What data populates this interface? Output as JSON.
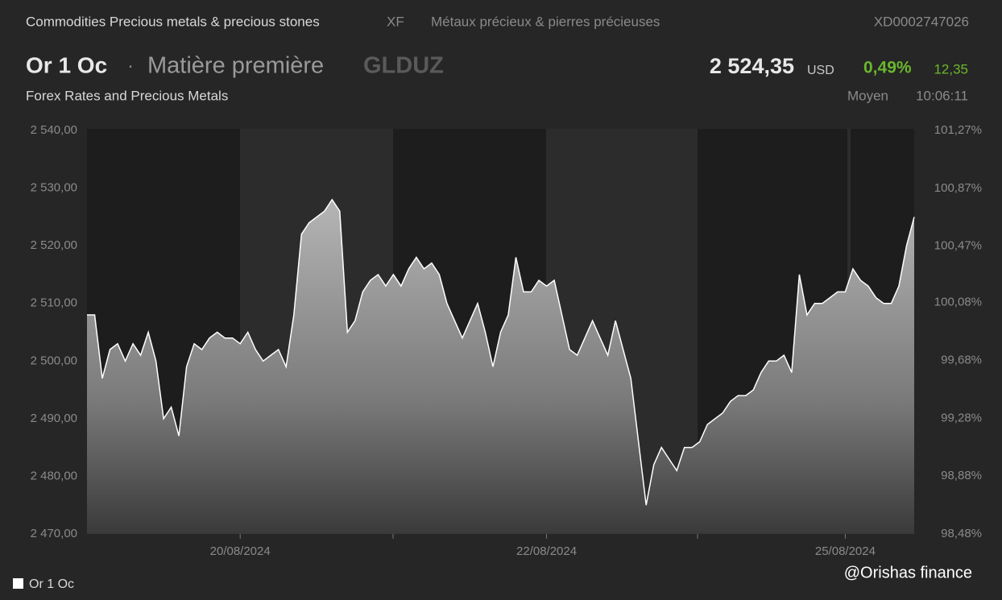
{
  "header": {
    "category": "Commodities Precious metals & precious stones",
    "exchange": "XF",
    "category_fr": "Métaux précieux & pierres précieuses",
    "isin": "XD0002747026",
    "name": "Or 1 Oc",
    "separator": "·",
    "asset_type": "Matière première",
    "ticker": "GLDUZ",
    "price": "2 524,35",
    "currency": "USD",
    "change_pct": "0,49%",
    "change": "12,35",
    "subtitle": "Forex Rates and Precious Metals",
    "quote_type": "Moyen",
    "time": "10:06:11"
  },
  "chart_data": {
    "type": "area",
    "categories": [
      null,
      null,
      null,
      null,
      null,
      null,
      null,
      null,
      null,
      null,
      null,
      null,
      null,
      null,
      null,
      null,
      null,
      null,
      null,
      null,
      "20/08/2024",
      null,
      null,
      null,
      null,
      null,
      null,
      null,
      null,
      null,
      null,
      null,
      null,
      null,
      null,
      null,
      null,
      null,
      null,
      null,
      null,
      null,
      null,
      null,
      null,
      null,
      null,
      null,
      null,
      null,
      null,
      null,
      null,
      null,
      null,
      null,
      null,
      null,
      null,
      null,
      "22/08/2024",
      null,
      null,
      null,
      null,
      null,
      null,
      null,
      null,
      null,
      null,
      null,
      null,
      null,
      null,
      null,
      null,
      null,
      null,
      null,
      null,
      null,
      null,
      null,
      null,
      null,
      null,
      null,
      null,
      null,
      null,
      null,
      null,
      null,
      null,
      null,
      null,
      null,
      null,
      "25/08/2024",
      null,
      null,
      null,
      null,
      null,
      null,
      null,
      null,
      null
    ],
    "series": [
      {
        "name": "Or 1 Oc",
        "color": "#ffffff",
        "values": [
          2508,
          2508,
          2497,
          2502,
          2503,
          2500,
          2503,
          2501,
          2505,
          2500,
          2490,
          2492,
          2487,
          2499,
          2503,
          2502,
          2504,
          2505,
          2504,
          2504,
          2503,
          2505,
          2502,
          2500,
          2501,
          2502,
          2499,
          2508,
          2522,
          2524,
          2525,
          2526,
          2528,
          2526,
          2505,
          2507,
          2512,
          2514,
          2515,
          2513,
          2515,
          2513,
          2516,
          2518,
          2516,
          2517,
          2515,
          2510,
          2507,
          2504,
          2507,
          2510,
          2505,
          2499,
          2505,
          2508,
          2518,
          2512,
          2512,
          2514,
          2513,
          2514,
          2508,
          2502,
          2501,
          2504,
          2507,
          2504,
          2501,
          2507,
          2502,
          2497,
          2486,
          2475,
          2482,
          2485,
          2483,
          2481,
          2485,
          2485,
          2486,
          2489,
          2490,
          2491,
          2493,
          2494,
          2494,
          2495,
          2498,
          2500,
          2500,
          2501,
          2498,
          2515,
          2508,
          2510,
          2510,
          2511,
          2512,
          2512,
          2516,
          2514,
          2513,
          2511,
          2510,
          2510,
          2513,
          2520,
          2525
        ]
      }
    ],
    "ylim": [
      2470,
      2540
    ],
    "yticks": [
      {
        "value": 2470,
        "label": "2 470,00"
      },
      {
        "value": 2480,
        "label": "2 480,00"
      },
      {
        "value": 2490,
        "label": "2 490,00"
      },
      {
        "value": 2500,
        "label": "2 500,00"
      },
      {
        "value": 2510,
        "label": "2 510,00"
      },
      {
        "value": 2520,
        "label": "2 520,00"
      },
      {
        "value": 2530,
        "label": "2 530,00"
      },
      {
        "value": 2540,
        "label": "2 540,00"
      }
    ],
    "y2lim": [
      98.48,
      101.27
    ],
    "y2ticks": [
      {
        "value": 98.48,
        "label": "98,48%"
      },
      {
        "value": 98.88,
        "label": "98,88%"
      },
      {
        "value": 99.28,
        "label": "99,28%"
      },
      {
        "value": 99.68,
        "label": "99,68%"
      },
      {
        "value": 100.08,
        "label": "100,08%"
      },
      {
        "value": 100.47,
        "label": "100,47%"
      },
      {
        "value": 100.87,
        "label": "100,87%"
      },
      {
        "value": 101.27,
        "label": "101,27%"
      }
    ],
    "watermark": "@Orishas finance"
  }
}
